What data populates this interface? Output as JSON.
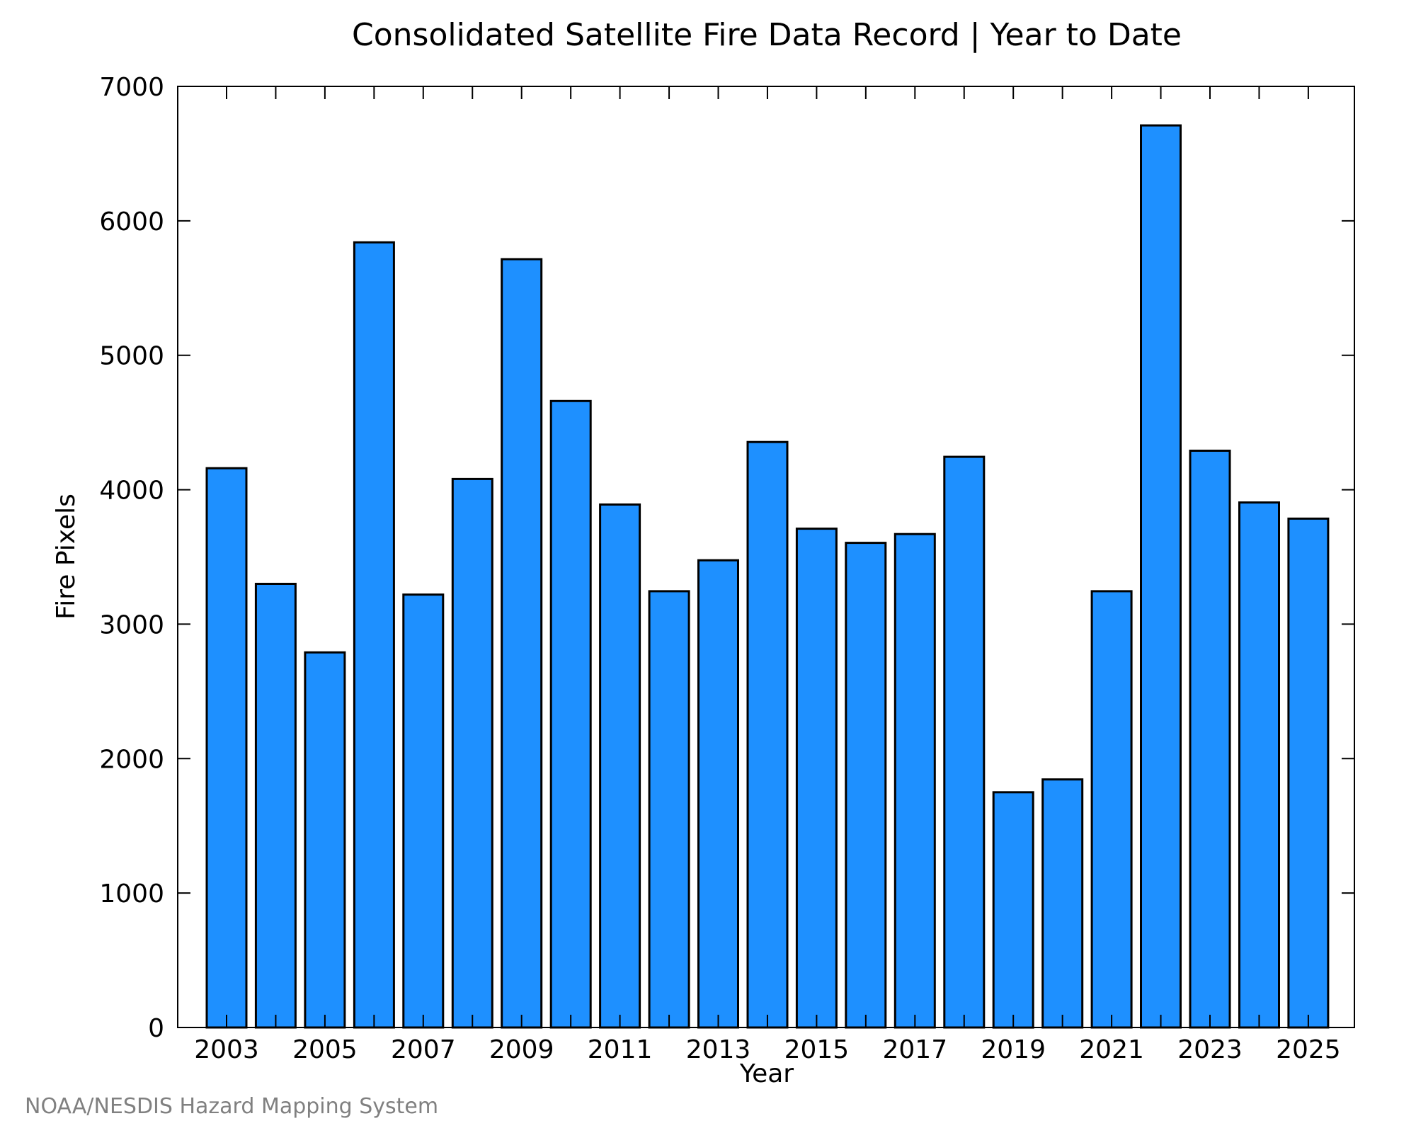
{
  "chart_data": {
    "type": "bar",
    "title": "Consolidated Satellite Fire Data Record | Year to Date",
    "xlabel": "Year",
    "ylabel": "Fire Pixels",
    "categories": [
      "2003",
      "2004",
      "2005",
      "2006",
      "2007",
      "2008",
      "2009",
      "2010",
      "2011",
      "2012",
      "2013",
      "2014",
      "2015",
      "2016",
      "2017",
      "2018",
      "2019",
      "2020",
      "2021",
      "2022",
      "2023",
      "2024",
      "2025"
    ],
    "values": [
      4160,
      3300,
      2790,
      5840,
      3220,
      4080,
      5715,
      4660,
      3890,
      3245,
      3475,
      4355,
      3710,
      3605,
      3670,
      4245,
      1750,
      1845,
      3245,
      6710,
      4290,
      3905,
      3785
    ],
    "ylim": [
      0,
      7000
    ],
    "yticks": [
      0,
      1000,
      2000,
      3000,
      4000,
      5000,
      6000,
      7000
    ],
    "xtick_labels": [
      "2003",
      "2005",
      "2007",
      "2009",
      "2011",
      "2013",
      "2015",
      "2017",
      "2019",
      "2021",
      "2023",
      "2025"
    ],
    "bar_color": "#1e90ff",
    "grid": false,
    "credit": "NOAA/NESDIS Hazard Mapping System"
  }
}
